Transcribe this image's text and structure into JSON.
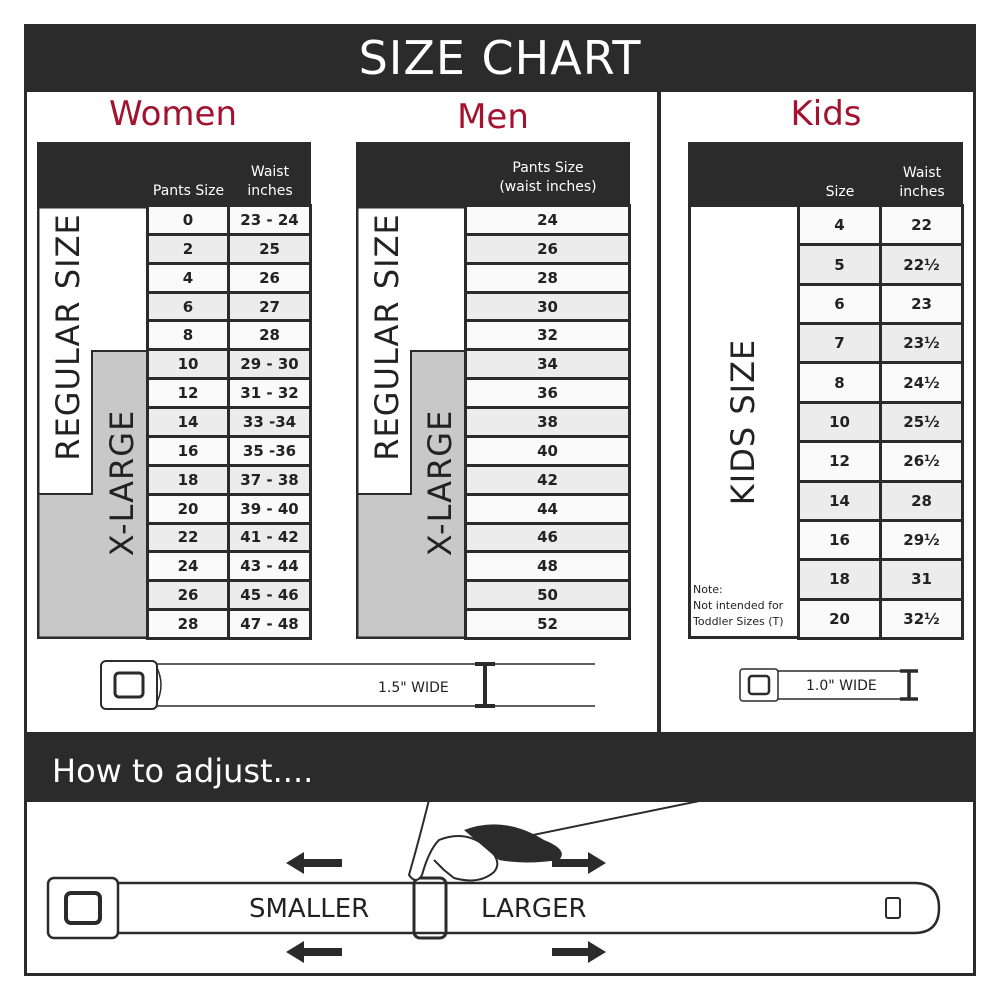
{
  "title": "SIZE CHART",
  "colors": {
    "accent": "#a3122f",
    "dark": "#2b2b2b",
    "xlarge_fill": "#c8c8c8"
  },
  "women": {
    "title": "Women",
    "headers": [
      "Pants Size",
      "Waist\ninches"
    ],
    "regular_label": "REGULAR SIZE",
    "xlarge_label": "X-LARGE",
    "rows": [
      [
        "0",
        "23 - 24"
      ],
      [
        "2",
        "25"
      ],
      [
        "4",
        "26"
      ],
      [
        "6",
        "27"
      ],
      [
        "8",
        "28"
      ],
      [
        "10",
        "29 - 30"
      ],
      [
        "12",
        "31 - 32"
      ],
      [
        "14",
        "33 -34"
      ],
      [
        "16",
        "35 -36"
      ],
      [
        "18",
        "37 - 38"
      ],
      [
        "20",
        "39 - 40"
      ],
      [
        "22",
        "41 - 42"
      ],
      [
        "24",
        "43 - 44"
      ],
      [
        "26",
        "45 - 46"
      ],
      [
        "28",
        "47 - 48"
      ]
    ]
  },
  "men": {
    "title": "Men",
    "headers": [
      "Pants Size\n(waist inches)"
    ],
    "regular_label": "REGULAR SIZE",
    "xlarge_label": "X-LARGE",
    "rows": [
      [
        "24"
      ],
      [
        "26"
      ],
      [
        "28"
      ],
      [
        "30"
      ],
      [
        "32"
      ],
      [
        "34"
      ],
      [
        "36"
      ],
      [
        "38"
      ],
      [
        "40"
      ],
      [
        "42"
      ],
      [
        "44"
      ],
      [
        "46"
      ],
      [
        "48"
      ],
      [
        "50"
      ],
      [
        "52"
      ]
    ]
  },
  "kids": {
    "title": "Kids",
    "headers": [
      "Size",
      "Waist\ninches"
    ],
    "label": "KIDS SIZE",
    "note": "Note:\nNot intended for\nToddler Sizes (T)",
    "rows": [
      [
        "4",
        "22"
      ],
      [
        "5",
        "22½"
      ],
      [
        "6",
        "23"
      ],
      [
        "7",
        "23½"
      ],
      [
        "8",
        "24½"
      ],
      [
        "10",
        "25½"
      ],
      [
        "12",
        "26½"
      ],
      [
        "14",
        "28"
      ],
      [
        "16",
        "29½"
      ],
      [
        "18",
        "31"
      ],
      [
        "20",
        "32½"
      ]
    ]
  },
  "adult_belt_width": "1.5\" WIDE",
  "kids_belt_width": "1.0\" WIDE",
  "adjust": {
    "title": "How to adjust....",
    "smaller": "SMALLER",
    "larger": "LARGER"
  }
}
